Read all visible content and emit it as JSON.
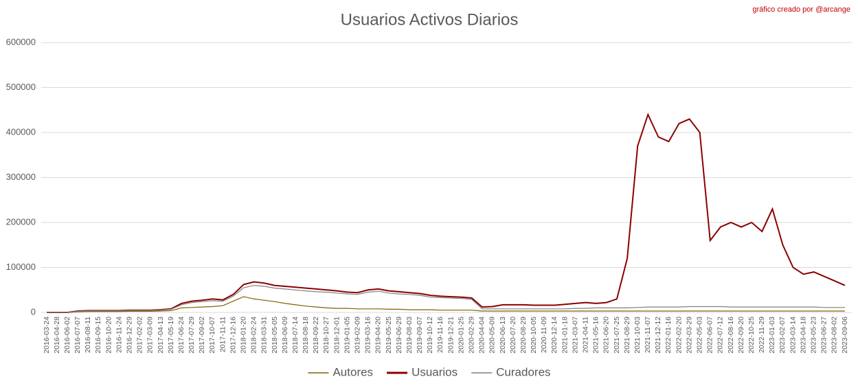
{
  "chart_data": {
    "type": "line",
    "title": "Usuarios Activos Diarios",
    "annotation": "gráfico creado por @arcange",
    "x": [
      "2016-03-24",
      "2016-04-28",
      "2016-06-02",
      "2016-07-07",
      "2016-08-11",
      "2016-09-15",
      "2016-10-20",
      "2016-11-24",
      "2016-12-29",
      "2017-02-02",
      "2017-03-09",
      "2017-04-13",
      "2017-05-19",
      "2017-06-24",
      "2017-07-29",
      "2017-09-02",
      "2017-10-07",
      "2017-11-11",
      "2017-12-16",
      "2018-01-20",
      "2018-02-24",
      "2018-03-31",
      "2018-05-05",
      "2018-06-09",
      "2018-07-14",
      "2018-08-18",
      "2018-09-22",
      "2018-10-27",
      "2018-12-01",
      "2019-01-05",
      "2019-02-09",
      "2019-03-16",
      "2019-04-20",
      "2019-05-25",
      "2019-06-29",
      "2019-08-03",
      "2019-09-07",
      "2019-10-12",
      "2019-11-16",
      "2019-12-21",
      "2020-01-25",
      "2020-02-29",
      "2020-04-04",
      "2020-05-09",
      "2020-06-13",
      "2020-07-20",
      "2020-08-29",
      "2020-10-05",
      "2020-11-09",
      "2020-12-14",
      "2021-01-18",
      "2021-03-07",
      "2021-04-11",
      "2021-05-16",
      "2021-06-20",
      "2021-07-25",
      "2021-08-29",
      "2021-10-03",
      "2021-11-07",
      "2021-12-12",
      "2022-01-16",
      "2022-02-20",
      "2022-03-29",
      "2022-05-03",
      "2022-06-07",
      "2022-07-12",
      "2022-08-16",
      "2022-09-20",
      "2022-10-25",
      "2022-11-29",
      "2023-01-03",
      "2023-02-07",
      "2023-03-14",
      "2023-04-18",
      "2023-05-23",
      "2023-06-27",
      "2023-08-02",
      "2023-09-06"
    ],
    "series": [
      {
        "name": "Autores",
        "color": "#7f6000",
        "values": [
          0,
          0,
          0,
          1500,
          2000,
          2000,
          2000,
          2000,
          2500,
          2500,
          2500,
          3000,
          4000,
          10000,
          11000,
          12000,
          13000,
          15000,
          25000,
          35000,
          30000,
          27000,
          24000,
          20000,
          17000,
          14000,
          12000,
          10000,
          9000,
          9000,
          8000,
          8000,
          8000,
          7000,
          7000,
          6000,
          6000,
          6000,
          5000,
          5000,
          5000,
          5000,
          3000,
          3000,
          3000,
          3000,
          3000,
          3000,
          3000,
          3000,
          3000,
          3000,
          3000,
          3000,
          3000,
          3000,
          3000,
          3000,
          3000,
          3000,
          3000,
          3000,
          3000,
          3000,
          3000,
          3000,
          3000,
          3000,
          3000,
          3000,
          3000,
          3000,
          3000,
          3000,
          3000,
          3000,
          3000,
          3000
        ]
      },
      {
        "name": "Usuarios",
        "color": "#8b0000",
        "values": [
          0,
          0,
          0,
          3000,
          4000,
          4000,
          4000,
          4000,
          5000,
          5000,
          5000,
          6000,
          8000,
          20000,
          25000,
          27000,
          30000,
          28000,
          40000,
          62000,
          68000,
          65000,
          60000,
          58000,
          56000,
          54000,
          52000,
          50000,
          48000,
          45000,
          44000,
          50000,
          52000,
          48000,
          46000,
          44000,
          42000,
          38000,
          36000,
          35000,
          34000,
          32000,
          12000,
          13000,
          17000,
          17000,
          17000,
          16000,
          16000,
          16000,
          18000,
          20000,
          22000,
          20000,
          22000,
          30000,
          120000,
          370000,
          440000,
          390000,
          380000,
          420000,
          430000,
          400000,
          160000,
          190000,
          200000,
          190000,
          200000,
          180000,
          230000,
          150000,
          100000,
          85000,
          90000,
          80000,
          70000,
          60000
        ]
      },
      {
        "name": "Curadores",
        "color": "#7f7f7f",
        "values": [
          0,
          0,
          0,
          2500,
          3500,
          3500,
          3500,
          3500,
          4500,
          4500,
          4500,
          5000,
          7000,
          17000,
          22000,
          24000,
          26000,
          25000,
          36000,
          55000,
          60000,
          58000,
          54000,
          52000,
          50000,
          48000,
          46000,
          45000,
          43000,
          41000,
          40000,
          45000,
          47000,
          43000,
          41000,
          40000,
          38000,
          34000,
          33000,
          32000,
          31000,
          29000,
          8000,
          8000,
          8000,
          8000,
          8000,
          8000,
          8000,
          8000,
          8000,
          9000,
          9000,
          10000,
          10000,
          10000,
          10000,
          11000,
          12000,
          12000,
          12000,
          12000,
          13000,
          13000,
          13000,
          13000,
          12000,
          12000,
          12000,
          12000,
          12000,
          12000,
          12000,
          12000,
          12000,
          11000,
          11000,
          11000
        ]
      }
    ],
    "ylim": [
      0,
      600000
    ],
    "yticks": [
      0,
      100000,
      200000,
      300000,
      400000,
      500000,
      600000
    ],
    "grid": true,
    "legend": "bottom"
  }
}
